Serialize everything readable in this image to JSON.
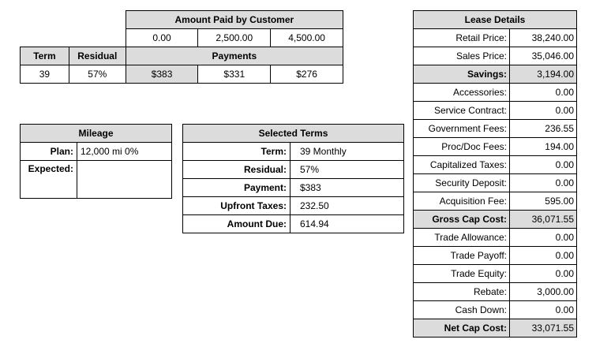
{
  "payments_table": {
    "amount_paid_header": "Amount Paid by Customer",
    "amounts": [
      "0.00",
      "2,500.00",
      "4,500.00"
    ],
    "term_header": "Term",
    "residual_header": "Residual",
    "payments_header": "Payments",
    "row": {
      "term": "39",
      "residual": "57%",
      "payments": [
        "$383",
        "$331",
        "$276"
      ]
    }
  },
  "mileage": {
    "title": "Mileage",
    "plan_label": "Plan:",
    "plan_value": "12,000 mi 0%",
    "expected_label": "Expected:",
    "expected_value": ""
  },
  "selected_terms": {
    "title": "Selected Terms",
    "rows": [
      {
        "label": "Term:",
        "value": "39 Monthly"
      },
      {
        "label": "Residual:",
        "value": "57%"
      },
      {
        "label": "Payment:",
        "value": "$383"
      },
      {
        "label": "Upfront Taxes:",
        "value": "232.50"
      },
      {
        "label": "Amount Due:",
        "value": "614.94"
      }
    ]
  },
  "lease_details": {
    "title": "Lease Details",
    "rows": [
      {
        "label": "Retail Price:",
        "value": "38,240.00"
      },
      {
        "label": "Sales Price:",
        "value": "35,046.00"
      },
      {
        "label": "Savings:",
        "value": "3,194.00"
      },
      {
        "label": "Accessories:",
        "value": "0.00"
      },
      {
        "label": "Service Contract:",
        "value": "0.00"
      },
      {
        "label": "Government Fees:",
        "value": "236.55"
      },
      {
        "label": "Proc/Doc Fees:",
        "value": "194.00"
      },
      {
        "label": "Capitalized Taxes:",
        "value": "0.00"
      },
      {
        "label": "Security Deposit:",
        "value": "0.00"
      },
      {
        "label": "Acquisition Fee:",
        "value": "595.00"
      },
      {
        "label": "Gross Cap Cost:",
        "value": "36,071.55"
      },
      {
        "label": "Trade Allowance:",
        "value": "0.00"
      },
      {
        "label": "Trade Payoff:",
        "value": "0.00"
      },
      {
        "label": "Trade Equity:",
        "value": "0.00"
      },
      {
        "label": "Rebate:",
        "value": "3,000.00"
      },
      {
        "label": "Cash Down:",
        "value": "0.00"
      },
      {
        "label": "Net Cap Cost:",
        "value": "33,071.55"
      }
    ]
  }
}
